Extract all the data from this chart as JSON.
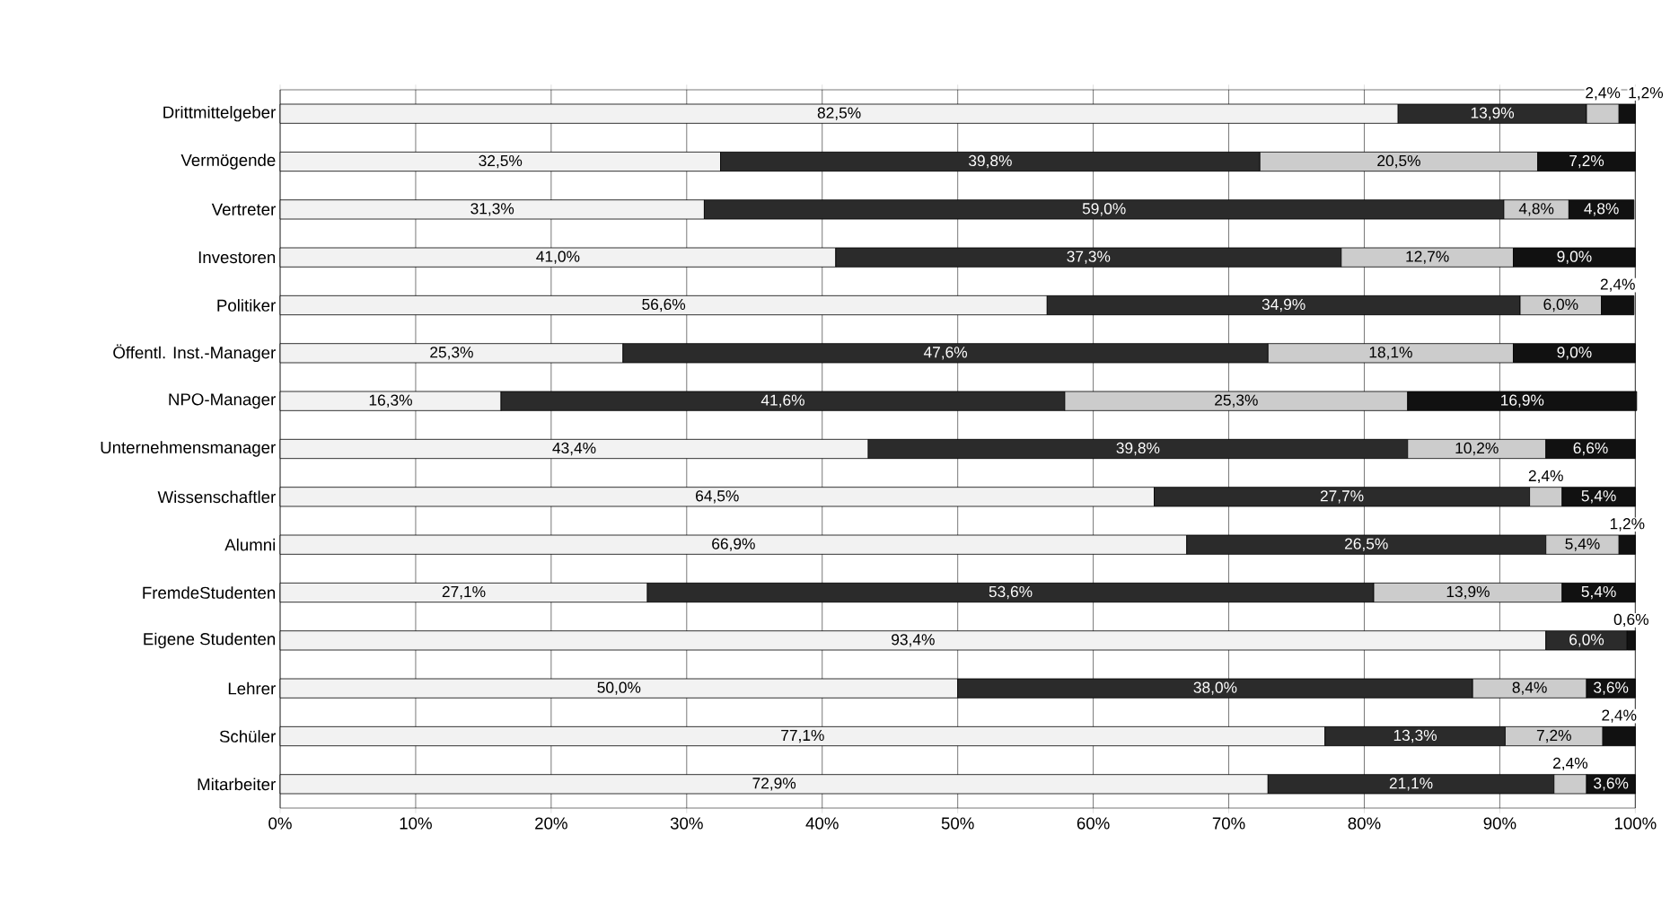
{
  "chart_data": {
    "type": "bar",
    "orientation": "horizontal",
    "stacked": true,
    "grid": "x",
    "categories": [
      "Drittmittelgeber",
      "Vermögende",
      "Vertreter",
      "Investoren",
      "Politiker",
      "Öffentl. Inst.-Manager",
      "NPO-Manager",
      "Unternehmensmanager",
      "Wissenschaftler",
      "Alumni",
      "FremdeStudenten",
      "Eigene Studenten",
      "Lehrer",
      "Schüler",
      "Mitarbeiter"
    ],
    "xlim": [
      0,
      100
    ],
    "xticks": [
      {
        "value": 0,
        "label": "0%"
      },
      {
        "value": 10,
        "label": "10%"
      },
      {
        "value": 20,
        "label": "20%"
      },
      {
        "value": 30,
        "label": "30%"
      },
      {
        "value": 40,
        "label": "40%"
      },
      {
        "value": 50,
        "label": "50%"
      },
      {
        "value": 60,
        "label": "60%"
      },
      {
        "value": 70,
        "label": "70%"
      },
      {
        "value": 80,
        "label": "80%"
      },
      {
        "value": 90,
        "label": "90%"
      },
      {
        "value": 100,
        "label": "100%"
      }
    ],
    "series": [
      {
        "color": "#f2f2f2",
        "values": [
          82.5,
          32.5,
          31.3,
          41.0,
          56.6,
          25.3,
          16.3,
          43.4,
          64.5,
          66.9,
          27.1,
          93.4,
          50.0,
          77.1,
          72.9
        ],
        "value_labels": [
          "82,5%",
          "32,5%",
          "31,3%",
          "41,0%",
          "56,6%",
          "25,3%",
          "16,3%",
          "43,4%",
          "64,5%",
          "66,9%",
          "27,1%",
          "93,4%",
          "50,0%",
          "77,1%",
          "72,9%"
        ]
      },
      {
        "color": "#2b2b2b",
        "values": [
          13.9,
          39.8,
          59.0,
          37.3,
          34.9,
          47.6,
          41.6,
          39.8,
          27.7,
          26.5,
          53.6,
          6.0,
          38.0,
          13.3,
          21.1
        ],
        "value_labels": [
          "13,9%",
          "39,8%",
          "59,0%",
          "37,3%",
          "34,9%",
          "47,6%",
          "41,6%",
          "39,8%",
          "27,7%",
          "26,5%",
          "53,6%",
          "6,0%",
          "38,0%",
          "13,3%",
          "21,1%"
        ]
      },
      {
        "color": "#cccccc",
        "values": [
          2.4,
          20.5,
          4.8,
          12.7,
          6.0,
          18.1,
          25.3,
          10.2,
          2.4,
          5.4,
          13.9,
          null,
          8.4,
          7.2,
          2.4
        ],
        "value_labels": [
          "2,4%",
          "20,5%",
          "4,8%",
          "12,7%",
          "6,0%",
          "18,1%",
          "25,3%",
          "10,2%",
          "2,4%",
          "5,4%",
          "13,9%",
          null,
          "8,4%",
          "7,2%",
          "2,4%"
        ]
      },
      {
        "color": "#111111",
        "values": [
          1.2,
          7.2,
          4.8,
          9.0,
          2.4,
          9.0,
          16.9,
          6.6,
          5.4,
          1.2,
          5.4,
          0.6,
          3.6,
          2.4,
          3.6
        ],
        "value_labels": [
          "1,2%",
          "7,2%",
          "4,8%",
          "9,0%",
          "2,4%",
          "9,0%",
          "16,9%",
          "6,6%",
          "5,4%",
          "1,2%",
          "5,4%",
          "0,6%",
          "3,6%",
          "2,4%",
          "3,6%"
        ]
      }
    ]
  }
}
